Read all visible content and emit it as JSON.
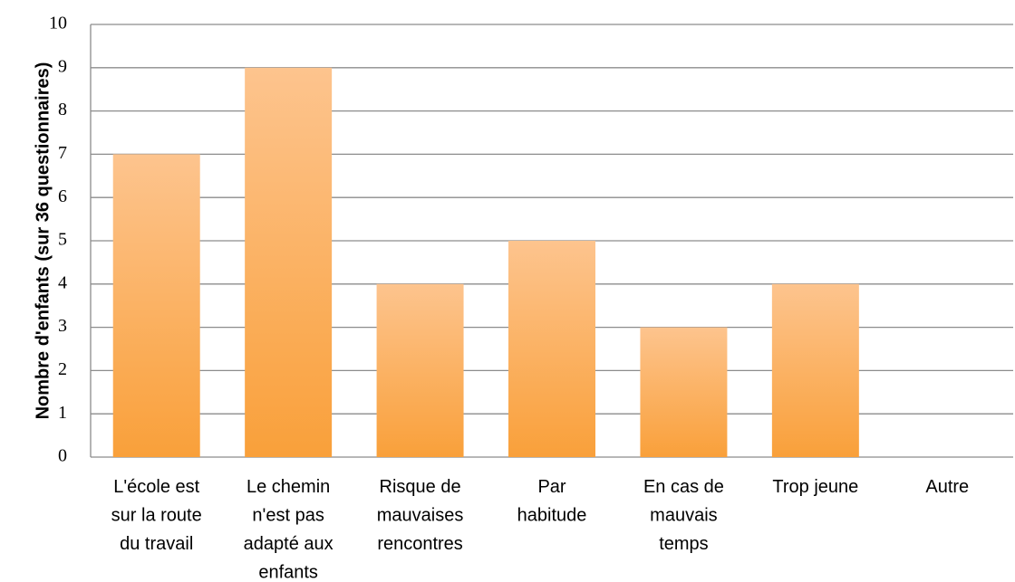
{
  "chart_data": {
    "type": "bar",
    "y_label": "Nombre d'enfants (sur 36 questionnaires)",
    "categories": [
      "L'école est\nsur la route\ndu travail",
      "Le chemin\nn'est pas\nadapté aux\nenfants",
      "Risque de\nmauvaises\nrencontres",
      "Par\nhabitude",
      "En cas de\nmauvais\ntemps",
      "Trop jeune",
      "Autre"
    ],
    "values": [
      7,
      9,
      4,
      5,
      3,
      4,
      0
    ],
    "color": "#f9a03a",
    "ylim": [
      0,
      10
    ],
    "yticks": [
      0,
      1,
      2,
      3,
      4,
      5,
      6,
      7,
      8,
      9,
      10
    ],
    "grid": true
  }
}
